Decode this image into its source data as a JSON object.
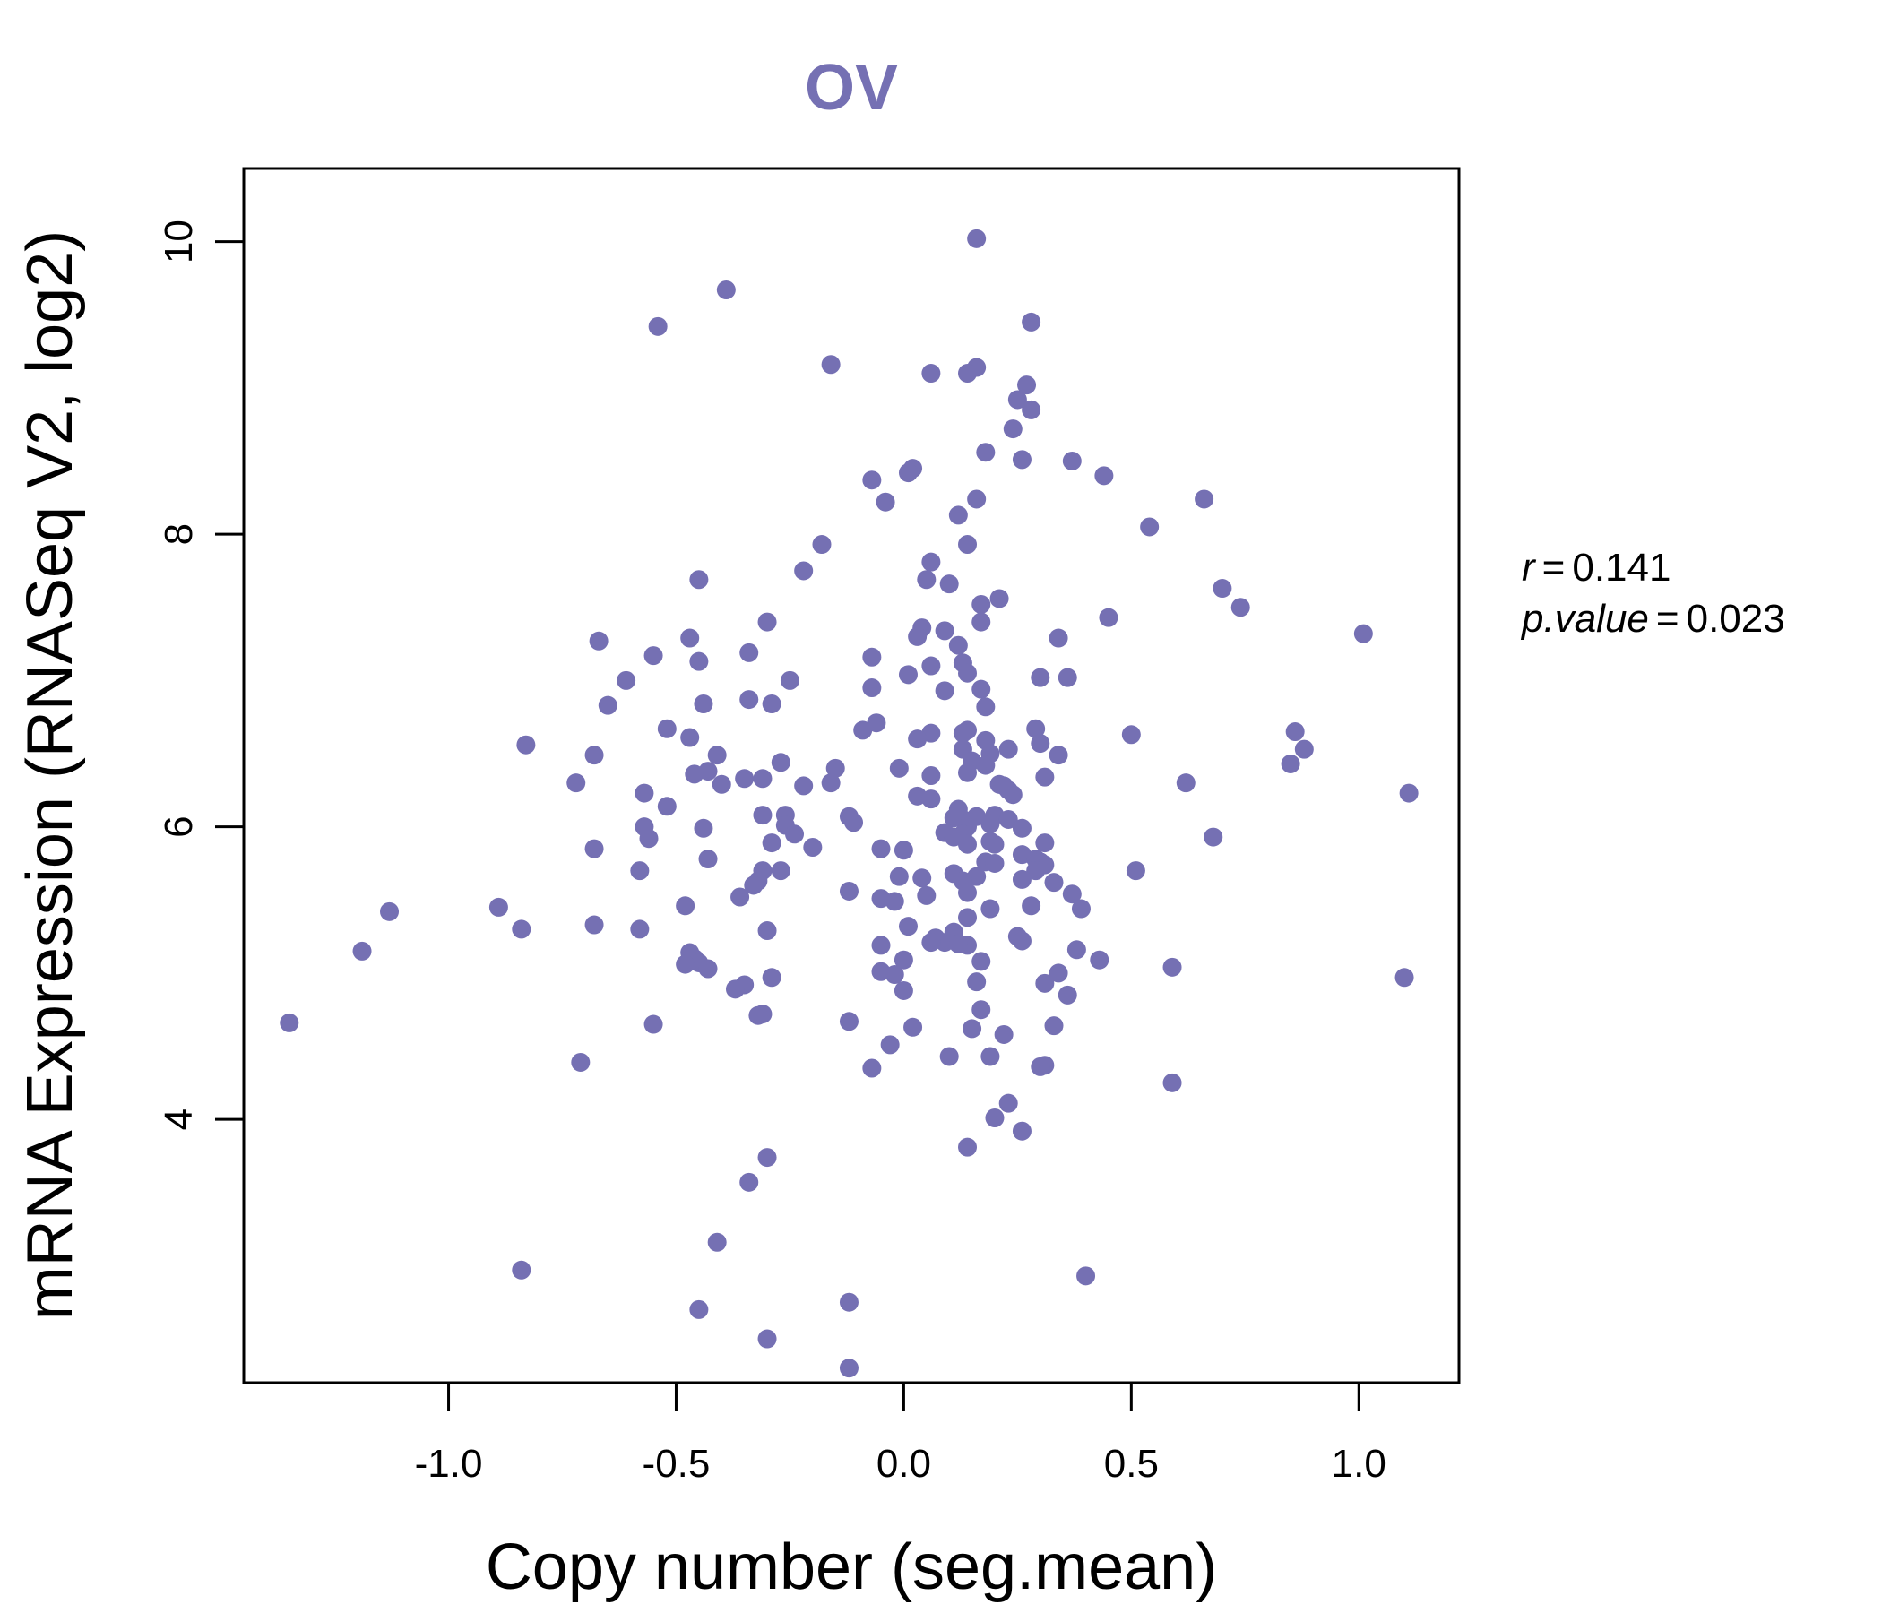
{
  "chart_data": {
    "type": "scatter",
    "title": "OV",
    "xlabel": "Copy number (seg.mean)",
    "ylabel": "mRNA Expression (RNASeq V2, log2)",
    "xlim": [
      -1.45,
      1.22
    ],
    "ylim": [
      2.2,
      10.5
    ],
    "xticks": [
      -1.0,
      -0.5,
      0.0,
      0.5,
      1.0
    ],
    "xtick_labels": [
      "-1.0",
      "-0.5",
      "0.0",
      "0.5",
      "1.0"
    ],
    "yticks": [
      4,
      6,
      8,
      10
    ],
    "ytick_labels": [
      "4",
      "6",
      "8",
      "10"
    ],
    "grid": false,
    "legend": "none",
    "point_color": "#7570b3",
    "stats": {
      "r_symbol": "r",
      "r_value": "0.141",
      "p_symbol": "p.value",
      "p_value": "0.023",
      "equals": "="
    },
    "points": [
      [
        0.16,
        10.02
      ],
      [
        -0.39,
        9.67
      ],
      [
        -0.54,
        9.42
      ],
      [
        0.28,
        9.45
      ],
      [
        -0.16,
        9.16
      ],
      [
        0.16,
        9.14
      ],
      [
        0.14,
        9.1
      ],
      [
        0.06,
        9.1
      ],
      [
        0.27,
        9.02
      ],
      [
        0.25,
        8.92
      ],
      [
        0.28,
        8.85
      ],
      [
        0.24,
        8.72
      ],
      [
        0.18,
        8.56
      ],
      [
        0.26,
        8.51
      ],
      [
        0.37,
        8.5
      ],
      [
        0.02,
        8.45
      ],
      [
        0.01,
        8.42
      ],
      [
        -0.07,
        8.37
      ],
      [
        0.44,
        8.4
      ],
      [
        0.16,
        8.24
      ],
      [
        -0.04,
        8.22
      ],
      [
        0.66,
        8.24
      ],
      [
        0.12,
        8.13
      ],
      [
        0.54,
        8.05
      ],
      [
        0.14,
        7.93
      ],
      [
        -0.18,
        7.93
      ],
      [
        0.06,
        7.81
      ],
      [
        -0.22,
        7.75
      ],
      [
        -0.45,
        7.69
      ],
      [
        0.05,
        7.69
      ],
      [
        0.1,
        7.66
      ],
      [
        0.7,
        7.63
      ],
      [
        0.21,
        7.56
      ],
      [
        0.17,
        7.52
      ],
      [
        0.74,
        7.5
      ],
      [
        0.45,
        7.43
      ],
      [
        0.17,
        7.4
      ],
      [
        -0.3,
        7.4
      ],
      [
        0.04,
        7.36
      ],
      [
        0.09,
        7.34
      ],
      [
        0.03,
        7.3
      ],
      [
        1.01,
        7.32
      ],
      [
        0.34,
        7.29
      ],
      [
        -0.47,
        7.29
      ],
      [
        -0.67,
        7.27
      ],
      [
        0.12,
        7.24
      ],
      [
        -0.34,
        7.19
      ],
      [
        -0.55,
        7.17
      ],
      [
        -0.07,
        7.16
      ],
      [
        -0.45,
        7.13
      ],
      [
        0.06,
        7.1
      ],
      [
        0.13,
        7.12
      ],
      [
        0.14,
        7.05
      ],
      [
        0.01,
        7.04
      ],
      [
        0.3,
        7.02
      ],
      [
        0.36,
        7.02
      ],
      [
        -0.61,
        7.0
      ],
      [
        -0.25,
        7.0
      ],
      [
        -0.07,
        6.95
      ],
      [
        0.09,
        6.93
      ],
      [
        0.17,
        6.94
      ],
      [
        -0.34,
        6.87
      ],
      [
        -0.29,
        6.84
      ],
      [
        -0.44,
        6.84
      ],
      [
        -0.65,
        6.83
      ],
      [
        0.18,
        6.82
      ],
      [
        -0.06,
        6.71
      ],
      [
        -0.09,
        6.66
      ],
      [
        -0.52,
        6.67
      ],
      [
        0.29,
        6.67
      ],
      [
        0.14,
        6.66
      ],
      [
        0.13,
        6.64
      ],
      [
        0.06,
        6.64
      ],
      [
        0.5,
        6.63
      ],
      [
        0.86,
        6.65
      ],
      [
        -0.47,
        6.61
      ],
      [
        0.03,
        6.6
      ],
      [
        0.18,
        6.59
      ],
      [
        0.3,
        6.57
      ],
      [
        -0.83,
        6.56
      ],
      [
        0.88,
        6.53
      ],
      [
        0.13,
        6.53
      ],
      [
        0.23,
        6.53
      ],
      [
        0.19,
        6.5
      ],
      [
        0.34,
        6.49
      ],
      [
        -0.68,
        6.49
      ],
      [
        -0.41,
        6.49
      ],
      [
        0.15,
        6.45
      ],
      [
        -0.27,
        6.44
      ],
      [
        0.85,
        6.43
      ],
      [
        0.18,
        6.42
      ],
      [
        -0.01,
        6.4
      ],
      [
        -0.15,
        6.4
      ],
      [
        -0.43,
        6.38
      ],
      [
        0.14,
        6.37
      ],
      [
        -0.46,
        6.36
      ],
      [
        0.06,
        6.35
      ],
      [
        0.31,
        6.34
      ],
      [
        -0.35,
        6.33
      ],
      [
        -0.31,
        6.33
      ],
      [
        -0.72,
        6.3
      ],
      [
        0.62,
        6.3
      ],
      [
        -0.4,
        6.29
      ],
      [
        -0.16,
        6.3
      ],
      [
        0.21,
        6.29
      ],
      [
        0.22,
        6.28
      ],
      [
        -0.22,
        6.28
      ],
      [
        0.23,
        6.25
      ],
      [
        -0.57,
        6.23
      ],
      [
        0.03,
        6.21
      ],
      [
        0.06,
        6.19
      ],
      [
        0.24,
        6.22
      ],
      [
        1.11,
        6.23
      ],
      [
        -0.52,
        6.14
      ],
      [
        0.12,
        6.12
      ],
      [
        0.16,
        6.07
      ],
      [
        0.2,
        6.08
      ],
      [
        0.11,
        6.06
      ],
      [
        -0.12,
        6.07
      ],
      [
        -0.31,
        6.08
      ],
      [
        -0.26,
        6.08
      ],
      [
        0.23,
        6.05
      ],
      [
        0.13,
        6.05
      ],
      [
        -0.11,
        6.03
      ],
      [
        0.19,
        6.02
      ],
      [
        -0.26,
        6.01
      ],
      [
        -0.57,
        6.0
      ],
      [
        0.26,
        5.99
      ],
      [
        0.14,
        6.0
      ],
      [
        -0.44,
        5.99
      ],
      [
        -0.24,
        5.95
      ],
      [
        0.09,
        5.96
      ],
      [
        0.13,
        5.95
      ],
      [
        0.68,
        5.93
      ],
      [
        -0.56,
        5.92
      ],
      [
        0.19,
        5.9
      ],
      [
        0.2,
        5.88
      ],
      [
        0.31,
        5.89
      ],
      [
        0.14,
        5.88
      ],
      [
        0.11,
        5.93
      ],
      [
        -0.29,
        5.89
      ],
      [
        -0.2,
        5.86
      ],
      [
        -0.05,
        5.85
      ],
      [
        -0.68,
        5.85
      ],
      [
        0.0,
        5.84
      ],
      [
        0.26,
        5.81
      ],
      [
        -0.43,
        5.78
      ],
      [
        0.29,
        5.78
      ],
      [
        0.3,
        5.76
      ],
      [
        0.18,
        5.76
      ],
      [
        0.2,
        5.75
      ],
      [
        0.31,
        5.74
      ],
      [
        -0.27,
        5.7
      ],
      [
        -0.31,
        5.7
      ],
      [
        0.51,
        5.7
      ],
      [
        0.29,
        5.7
      ],
      [
        -0.58,
        5.7
      ],
      [
        0.11,
        5.68
      ],
      [
        -0.01,
        5.66
      ],
      [
        0.04,
        5.65
      ],
      [
        0.16,
        5.66
      ],
      [
        0.26,
        5.64
      ],
      [
        -0.32,
        5.63
      ],
      [
        0.13,
        5.63
      ],
      [
        0.33,
        5.62
      ],
      [
        -0.33,
        5.6
      ],
      [
        -0.12,
        5.56
      ],
      [
        0.14,
        5.55
      ],
      [
        0.05,
        5.53
      ],
      [
        0.37,
        5.54
      ],
      [
        -0.36,
        5.52
      ],
      [
        -0.05,
        5.51
      ],
      [
        -0.02,
        5.49
      ],
      [
        0.28,
        5.46
      ],
      [
        -0.48,
        5.46
      ],
      [
        0.19,
        5.44
      ],
      [
        0.39,
        5.44
      ],
      [
        -0.89,
        5.45
      ],
      [
        0.14,
        5.38
      ],
      [
        -1.13,
        5.42
      ],
      [
        0.01,
        5.32
      ],
      [
        -0.58,
        5.3
      ],
      [
        -0.84,
        5.3
      ],
      [
        -0.3,
        5.29
      ],
      [
        -0.68,
        5.33
      ],
      [
        0.11,
        5.28
      ],
      [
        0.25,
        5.25
      ],
      [
        0.07,
        5.24
      ],
      [
        0.26,
        5.22
      ],
      [
        0.09,
        5.21
      ],
      [
        0.06,
        5.21
      ],
      [
        0.14,
        5.19
      ],
      [
        -0.05,
        5.19
      ],
      [
        0.12,
        5.2
      ],
      [
        0.38,
        5.16
      ],
      [
        -1.19,
        5.15
      ],
      [
        -0.47,
        5.14
      ],
      [
        -0.46,
        5.1
      ],
      [
        0.0,
        5.09
      ],
      [
        0.17,
        5.08
      ],
      [
        0.43,
        5.09
      ],
      [
        -0.45,
        5.07
      ],
      [
        -0.48,
        5.06
      ],
      [
        -0.43,
        5.03
      ],
      [
        -0.05,
        5.01
      ],
      [
        0.59,
        5.04
      ],
      [
        0.34,
        5.0
      ],
      [
        -0.02,
        4.99
      ],
      [
        1.1,
        4.97
      ],
      [
        -0.29,
        4.97
      ],
      [
        0.16,
        4.94
      ],
      [
        0.31,
        4.93
      ],
      [
        -0.35,
        4.92
      ],
      [
        -0.37,
        4.89
      ],
      [
        0.0,
        4.88
      ],
      [
        0.36,
        4.85
      ],
      [
        0.17,
        4.75
      ],
      [
        -0.31,
        4.72
      ],
      [
        -0.32,
        4.71
      ],
      [
        -0.12,
        4.67
      ],
      [
        -1.35,
        4.66
      ],
      [
        -0.55,
        4.65
      ],
      [
        0.33,
        4.64
      ],
      [
        0.02,
        4.63
      ],
      [
        0.15,
        4.62
      ],
      [
        0.22,
        4.58
      ],
      [
        -0.03,
        4.51
      ],
      [
        0.1,
        4.43
      ],
      [
        0.19,
        4.43
      ],
      [
        -0.71,
        4.39
      ],
      [
        0.31,
        4.37
      ],
      [
        0.3,
        4.36
      ],
      [
        -0.07,
        4.35
      ],
      [
        0.59,
        4.25
      ],
      [
        0.23,
        4.11
      ],
      [
        0.2,
        4.01
      ],
      [
        0.26,
        3.92
      ],
      [
        0.14,
        3.81
      ],
      [
        -0.3,
        3.74
      ],
      [
        -0.34,
        3.57
      ],
      [
        -0.41,
        3.16
      ],
      [
        -0.84,
        2.97
      ],
      [
        0.4,
        2.93
      ],
      [
        -0.12,
        2.75
      ],
      [
        -0.45,
        2.7
      ],
      [
        -0.3,
        2.5
      ],
      [
        -0.12,
        2.3
      ]
    ]
  }
}
